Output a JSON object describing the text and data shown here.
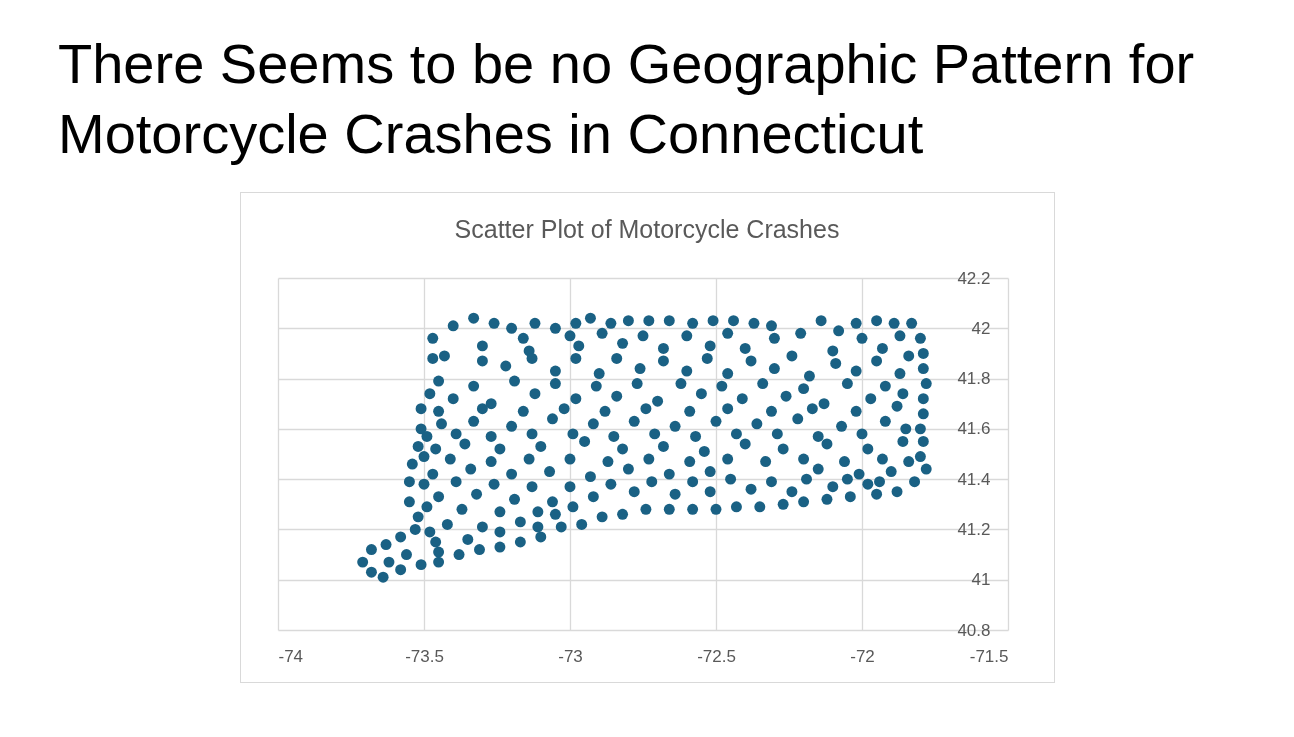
{
  "chart_data": {
    "type": "scatter",
    "title": "There Seems to be no Geographic Pattern for Motorcycle Crashes in Connecticut",
    "subtitle": "Scatter Plot of Motorcycle Crashes",
    "x": [
      -73.47,
      -73.4,
      -73.33,
      -73.26,
      -73.2,
      -73.12,
      -73.05,
      -72.98,
      -72.93,
      -72.86,
      -72.8,
      -72.73,
      -72.66,
      -72.58,
      -72.51,
      -72.44,
      -72.37,
      -72.31,
      -72.21,
      -72.14,
      -72.08,
      -72.02,
      -71.95,
      -71.89,
      -71.83,
      -71.8,
      -71.79,
      -71.79,
      -71.78,
      -71.79,
      -71.79,
      -71.8,
      -71.79,
      -71.8,
      -71.78,
      -71.82,
      -71.88,
      -71.95,
      -72.04,
      -72.12,
      -72.2,
      -72.27,
      -72.35,
      -72.43,
      -72.5,
      -72.58,
      -72.66,
      -72.74,
      -72.82,
      -72.89,
      -72.96,
      -73.03,
      -73.1,
      -73.17,
      -73.24,
      -73.31,
      -73.38,
      -73.45,
      -73.51,
      -73.58,
      -73.64,
      -73.68,
      -73.71,
      -73.68,
      -73.63,
      -73.58,
      -73.53,
      -73.52,
      -73.55,
      -73.55,
      -73.54,
      -73.52,
      -73.51,
      -73.51,
      -73.48,
      -73.45,
      -73.47,
      -73.43,
      -73.3,
      -73.14,
      -72.97,
      -72.82,
      -72.68,
      -72.52,
      -72.4,
      -72.1,
      -71.93,
      -73.22,
      -73.05,
      -72.9,
      -72.76,
      -72.6,
      -72.46,
      -72.3,
      -72.18,
      -72.02,
      -71.87,
      -73.4,
      -73.27,
      -73.12,
      -72.98,
      -72.84,
      -72.7,
      -72.55,
      -72.41,
      -72.26,
      -72.13,
      -71.97,
      -71.86,
      -73.44,
      -73.33,
      -73.2,
      -73.06,
      -72.92,
      -72.78,
      -72.64,
      -72.5,
      -72.36,
      -72.22,
      -72.07,
      -71.92,
      -73.46,
      -73.36,
      -73.24,
      -73.1,
      -72.95,
      -72.82,
      -72.68,
      -72.54,
      -72.4,
      -72.27,
      -72.12,
      -71.98,
      -71.86,
      -73.47,
      -73.34,
      -73.2,
      -73.07,
      -72.93,
      -72.8,
      -72.66,
      -72.52,
      -72.15,
      -72.01,
      -71.9,
      -73.45,
      -73.32,
      -73.19,
      -73.06,
      -72.92,
      -72.78,
      -72.64,
      -72.52,
      -72.38,
      -72.24,
      -72.1,
      -71.98,
      -73.42,
      -73.3,
      -73.17,
      -73.05,
      -73.46,
      -73.35,
      -73.24,
      -73.16,
      -73,
      -72.89,
      -72.75,
      -72.6,
      -72.46,
      -72.3,
      -72,
      -71.87,
      -73.3,
      -73.13,
      -72.98,
      -72.84,
      -72.68,
      -72.53,
      -72.38,
      -72.24,
      -72.09,
      -71.95,
      -71.84,
      -73.33,
      -73.19,
      -73.05,
      -72.91,
      -72.77,
      -72.62,
      -72.48,
      -72.34,
      -72.2,
      -72.05,
      -71.92,
      -73.45,
      -73.3,
      -73.16,
      -73.02,
      -72.88,
      -72.74,
      -72.59,
      -72.46,
      -72.31,
      -72.17,
      -72.02,
      -71.88,
      -73.49,
      -73.39,
      -73.27,
      -73.13,
      -72.99,
      -72.85,
      -72.71,
      -72.57,
      -72.43,
      -72.29,
      -72.15,
      -72,
      -71.85,
      -73.5,
      -73.41,
      -73.27,
      -73.14,
      -73,
      -72.87,
      -72.73,
      -72.59,
      -72.46,
      -72.33,
      -72.2,
      -72.06,
      -71.93,
      -71.84,
      -73.5,
      -73.39,
      -73.26,
      -73.13,
      -73,
      -72.86,
      -72.72,
      -72.58,
      -72.45,
      -72.31,
      -72.19,
      -72.05,
      -71.94,
      -73.49,
      -73.37,
      -73.24,
      -73.11,
      -72.99,
      -73.48,
      -73.11,
      -73.56,
      -73.45,
      -73.62
    ],
    "values": [
      41.96,
      42.01,
      42.04,
      42.02,
      42,
      42.02,
      42,
      42.02,
      42.04,
      42.02,
      42.03,
      42.03,
      42.03,
      42.02,
      42.03,
      42.03,
      42.02,
      42.01,
      41.98,
      42.03,
      41.99,
      42.02,
      42.03,
      42.02,
      42.02,
      41.96,
      41.9,
      41.84,
      41.78,
      41.72,
      41.66,
      41.6,
      41.55,
      41.49,
      41.44,
      41.39,
      41.35,
      41.34,
      41.33,
      41.32,
      41.31,
      41.3,
      41.29,
      41.29,
      41.28,
      41.28,
      41.28,
      41.28,
      41.26,
      41.25,
      41.22,
      41.21,
      41.17,
      41.15,
      41.13,
      41.12,
      41.1,
      41.07,
      41.06,
      41.04,
      41.01,
      41.03,
      41.07,
      41.12,
      41.14,
      41.17,
      41.2,
      41.25,
      41.31,
      41.39,
      41.46,
      41.53,
      41.6,
      41.68,
      41.74,
      41.79,
      41.88,
      41.89,
      41.93,
      41.91,
      41.93,
      41.94,
      41.92,
      41.93,
      41.92,
      41.91,
      41.92,
      41.85,
      41.83,
      41.82,
      41.84,
      41.83,
      41.82,
      41.84,
      41.81,
      41.83,
      41.82,
      41.72,
      41.7,
      41.74,
      41.72,
      41.73,
      41.71,
      41.74,
      41.72,
      41.73,
      41.7,
      41.72,
      41.74,
      41.62,
      41.63,
      41.61,
      41.64,
      41.62,
      41.63,
      41.61,
      41.63,
      41.62,
      41.64,
      41.61,
      41.63,
      41.52,
      41.54,
      41.52,
      41.53,
      41.55,
      41.52,
      41.53,
      41.51,
      41.54,
      41.52,
      41.54,
      41.52,
      41.55,
      41.42,
      41.44,
      41.42,
      41.43,
      41.41,
      41.44,
      41.42,
      41.43,
      41.44,
      41.42,
      41.43,
      41.33,
      41.34,
      41.32,
      41.31,
      41.33,
      41.35,
      41.34,
      41.35,
      41.36,
      41.35,
      41.37,
      41.38,
      41.22,
      41.21,
      41.23,
      41.26,
      41.15,
      41.16,
      41.19,
      41.96,
      41.97,
      41.98,
      41.97,
      41.97,
      41.98,
      41.96,
      41.96,
      41.97,
      41.87,
      41.88,
      41.88,
      41.88,
      41.87,
      41.88,
      41.87,
      41.89,
      41.86,
      41.87,
      41.89,
      41.77,
      41.79,
      41.78,
      41.77,
      41.78,
      41.78,
      41.77,
      41.78,
      41.76,
      41.78,
      41.77,
      41.67,
      41.68,
      41.67,
      41.68,
      41.67,
      41.68,
      41.67,
      41.68,
      41.67,
      41.68,
      41.67,
      41.69,
      41.57,
      41.58,
      41.57,
      41.58,
      41.58,
      41.57,
      41.58,
      41.57,
      41.58,
      41.58,
      41.57,
      41.58,
      41.6,
      41.49,
      41.48,
      41.47,
      41.48,
      41.48,
      41.47,
      41.48,
      41.47,
      41.48,
      41.47,
      41.48,
      41.47,
      41.48,
      41.47,
      41.38,
      41.39,
      41.38,
      41.37,
      41.37,
      41.38,
      41.39,
      41.39,
      41.4,
      41.39,
      41.4,
      41.4,
      41.39,
      41.29,
      41.28,
      41.27,
      41.27,
      41.29,
      41.19,
      41.21,
      41.1,
      41.11,
      41.07
    ],
    "color": "#1a6184",
    "marker": "circle",
    "grid": true,
    "xlim": [
      -74,
      -71.5
    ],
    "xticks": [
      -74,
      -73.5,
      -73,
      -72.5,
      -72,
      -71.5
    ],
    "ylim": [
      40.8,
      42.2
    ],
    "yticks": [
      40.8,
      41,
      41.2,
      41.4,
      41.6,
      41.8,
      42,
      42.2
    ]
  }
}
